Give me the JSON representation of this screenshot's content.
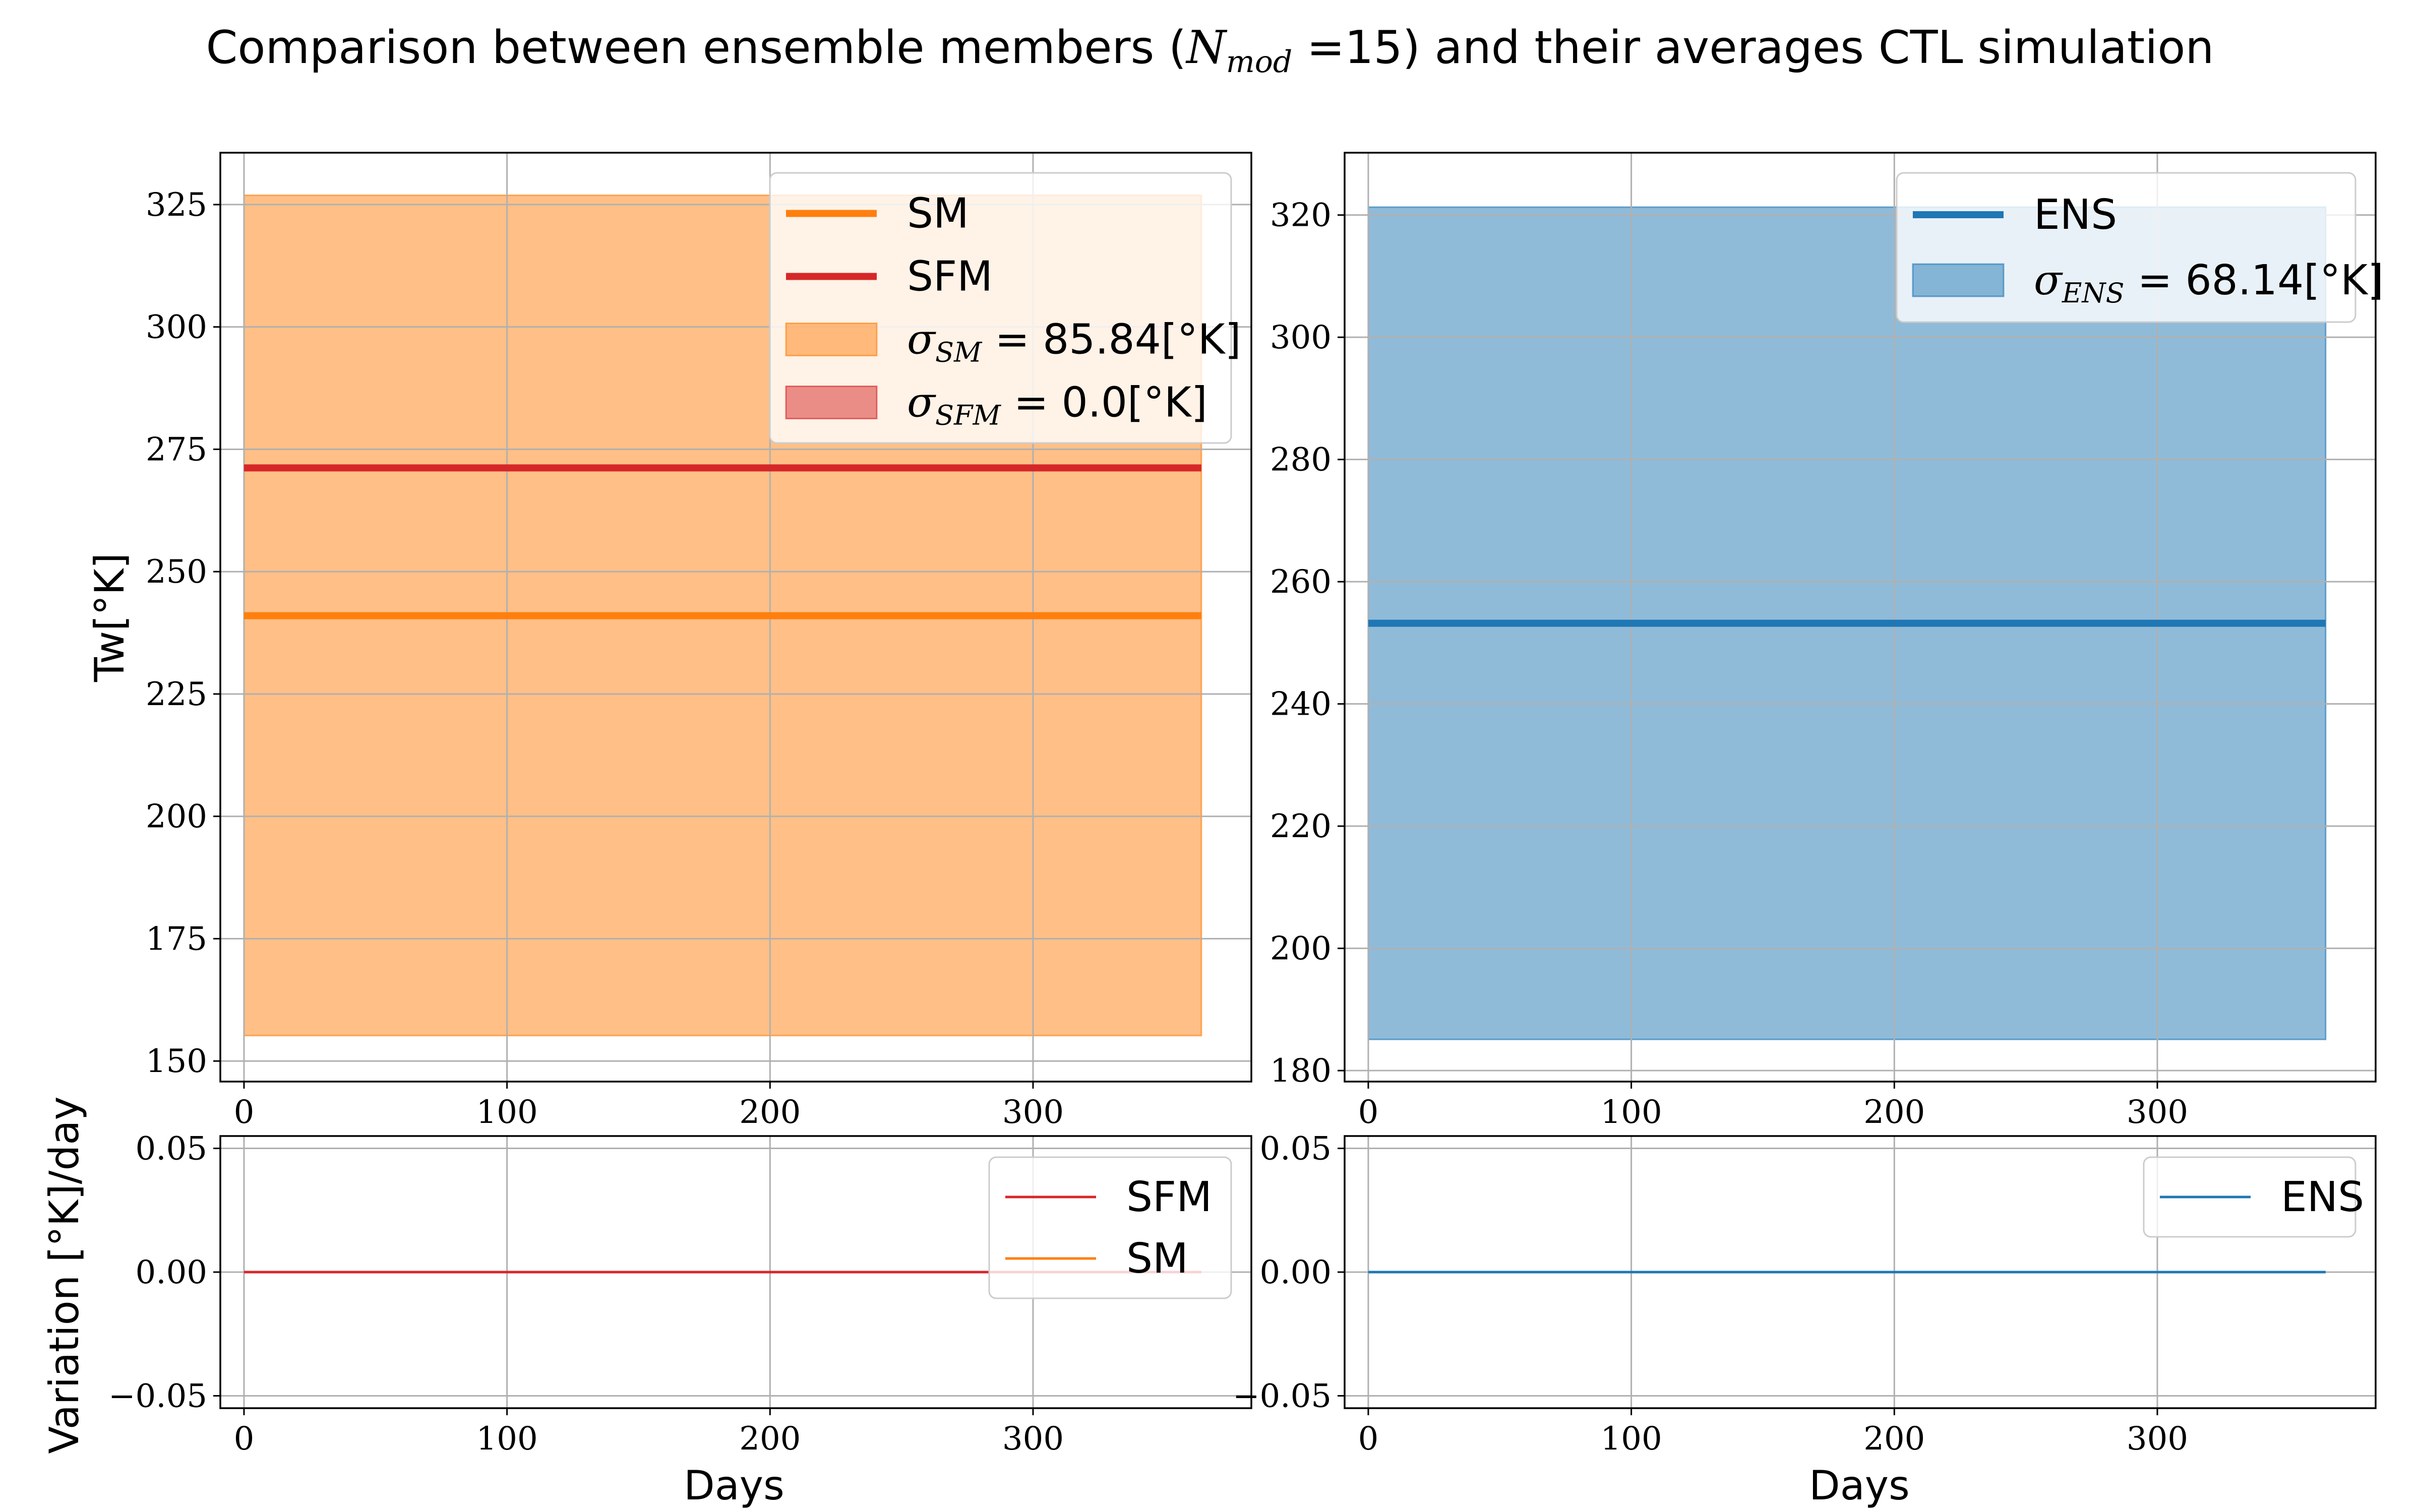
{
  "title": {
    "before": "Comparison between ensemble members (",
    "sym": "N",
    "sub": "mod",
    "after": " =15) and their averages CTL simulation"
  },
  "colors": {
    "sm": "#ff7f0e",
    "sfm": "#d62728",
    "ens": "#1f77b4",
    "grid": "#b0b0b0"
  },
  "axes_labels": {
    "top_ylabel": "Tw[°K]",
    "bottom_ylabel": "Variation [°K]/day",
    "xlabel": "Days"
  },
  "legends": {
    "top_left": [
      {
        "kind": "line",
        "color": "#ff7f0e",
        "text": "SM"
      },
      {
        "kind": "line",
        "color": "#d62728",
        "text": "SFM"
      },
      {
        "kind": "patch",
        "color": "#ff7f0e",
        "sym": "σ",
        "sub": "SM",
        "value": " = 85.84[°K]"
      },
      {
        "kind": "patch",
        "color": "#d62728",
        "sym": "σ",
        "sub": "SFM",
        "value": " = 0.0[°K]"
      }
    ],
    "top_right": [
      {
        "kind": "line",
        "color": "#1f77b4",
        "text": "ENS"
      },
      {
        "kind": "patch",
        "color": "#1f77b4",
        "sym": "σ",
        "sub": "ENS",
        "value": " = 68.14[°K]"
      }
    ],
    "bottom_left": [
      {
        "kind": "thin",
        "color": "#d62728",
        "text": "SFM"
      },
      {
        "kind": "thin",
        "color": "#ff7f0e",
        "text": "SM"
      }
    ],
    "bottom_right": [
      {
        "kind": "thin",
        "color": "#1f77b4",
        "text": "ENS"
      }
    ]
  },
  "chart_data": [
    {
      "type": "line",
      "panel": "top-left",
      "xlim": [
        -9,
        383
      ],
      "ylim": [
        145.8,
        335.6
      ],
      "xticks": [
        0,
        100,
        200,
        300
      ],
      "yticks": [
        150,
        175,
        200,
        225,
        250,
        275,
        300,
        325
      ],
      "grid": true,
      "legend_position": "upper right",
      "x_range": [
        0,
        364
      ],
      "series": [
        {
          "name": "SM",
          "color": "#ff7f0e",
          "value": 241.0,
          "band": [
            155.2,
            326.9
          ],
          "sigma": 85.84
        },
        {
          "name": "SFM",
          "color": "#d62728",
          "value": 271.2,
          "band": [
            271.2,
            271.2
          ],
          "sigma": 0.0
        }
      ]
    },
    {
      "type": "line",
      "panel": "top-right",
      "xlim": [
        -9,
        383
      ],
      "ylim": [
        178.2,
        330.2
      ],
      "xticks": [
        0,
        100,
        200,
        300
      ],
      "yticks": [
        180,
        200,
        220,
        240,
        260,
        280,
        300,
        320
      ],
      "grid": true,
      "legend_position": "upper right",
      "x_range": [
        0,
        364
      ],
      "series": [
        {
          "name": "ENS",
          "color": "#1f77b4",
          "value": 253.2,
          "band": [
            185.1,
            321.3
          ],
          "sigma": 68.14
        }
      ]
    },
    {
      "type": "line",
      "panel": "bottom-left",
      "xlim": [
        -9,
        383
      ],
      "ylim": [
        -0.055,
        0.055
      ],
      "xticks": [
        0,
        100,
        200,
        300
      ],
      "yticks": [
        -0.05,
        0.0,
        0.05
      ],
      "ytick_labels": [
        "−0.05",
        "0.00",
        "0.05"
      ],
      "grid": true,
      "legend_position": "upper right",
      "x_range": [
        0,
        364
      ],
      "series": [
        {
          "name": "SFM",
          "color": "#d62728",
          "value": 0.0
        },
        {
          "name": "SM",
          "color": "#ff7f0e",
          "value": 0.0
        }
      ]
    },
    {
      "type": "line",
      "panel": "bottom-right",
      "xlim": [
        -9,
        383
      ],
      "ylim": [
        -0.055,
        0.055
      ],
      "xticks": [
        0,
        100,
        200,
        300
      ],
      "yticks": [
        -0.05,
        0.0,
        0.05
      ],
      "ytick_labels": [
        "−0.05",
        "0.00",
        "0.05"
      ],
      "grid": true,
      "legend_position": "upper right",
      "x_range": [
        0,
        364
      ],
      "series": [
        {
          "name": "ENS",
          "color": "#1f77b4",
          "value": 0.0
        }
      ]
    }
  ]
}
